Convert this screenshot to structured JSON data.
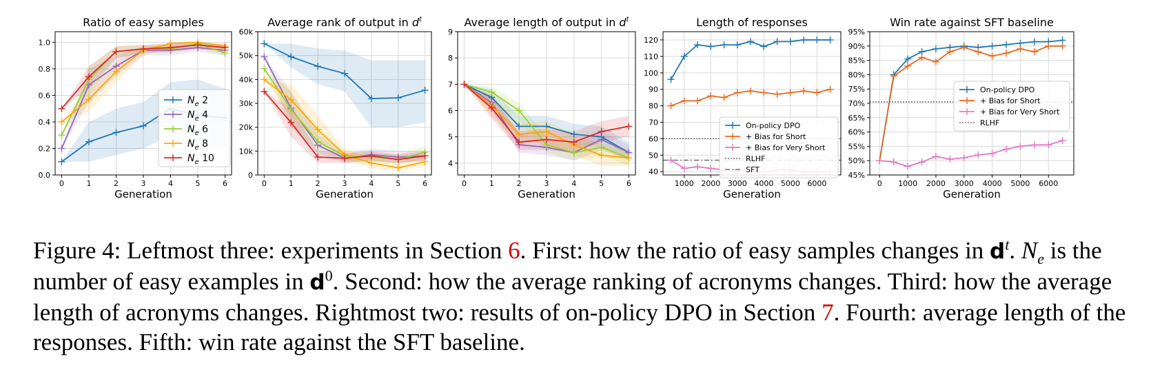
{
  "chart_data": [
    {
      "type": "line",
      "title": "Ratio of easy samples",
      "xlabel": "Generation",
      "ylabel": "",
      "x": [
        0,
        1,
        2,
        3,
        4,
        5,
        6
      ],
      "xticks": [
        "0",
        "1",
        "2",
        "3",
        "4",
        "5",
        "6"
      ],
      "yticks": [
        "0.0",
        "0.2",
        "0.4",
        "0.6",
        "0.8",
        "1.0"
      ],
      "ylim": [
        0,
        1.08
      ],
      "legend": "center-right",
      "series": [
        {
          "name": "N_e 2",
          "color": "#1f77b4",
          "values": [
            0.1,
            0.25,
            0.32,
            0.37,
            0.5,
            0.45,
            0.43
          ],
          "band": [
            0.1,
            0.4,
            0.5,
            0.55,
            0.7,
            0.72,
            0.65
          ],
          "band_low": [
            0.1,
            0.1,
            0.15,
            0.2,
            0.3,
            0.25,
            0.2
          ]
        },
        {
          "name": "N_e 4",
          "color": "#9467bd",
          "values": [
            0.2,
            0.68,
            0.82,
            0.94,
            0.94,
            0.96,
            0.94
          ],
          "band_low": [
            0.2,
            0.55,
            0.75,
            0.9,
            0.9,
            0.93,
            0.9
          ],
          "band": [
            0.2,
            0.8,
            0.9,
            0.97,
            0.98,
            0.99,
            0.98
          ]
        },
        {
          "name": "N_e 6",
          "color": "#9acd32",
          "values": [
            0.3,
            0.72,
            0.93,
            0.95,
            0.95,
            0.99,
            0.92
          ],
          "band_low": [
            0.3,
            0.6,
            0.88,
            0.92,
            0.92,
            0.95,
            0.9
          ],
          "band": [
            0.3,
            0.82,
            0.97,
            0.98,
            0.98,
            1.0,
            0.96
          ]
        },
        {
          "name": "N_e 8",
          "color": "#ffa500",
          "values": [
            0.4,
            0.57,
            0.78,
            0.94,
            0.99,
            1.0,
            0.97
          ],
          "band_low": [
            0.4,
            0.48,
            0.7,
            0.9,
            0.96,
            0.98,
            0.94
          ],
          "band": [
            0.4,
            0.66,
            0.85,
            0.97,
            1.0,
            1.0,
            0.99
          ]
        },
        {
          "name": "N_e 10",
          "color": "#d62728",
          "values": [
            0.5,
            0.74,
            0.93,
            0.95,
            0.96,
            0.98,
            0.96
          ],
          "band_low": [
            0.5,
            0.65,
            0.88,
            0.92,
            0.93,
            0.95,
            0.93
          ],
          "band": [
            0.5,
            0.82,
            0.97,
            0.98,
            0.99,
            1.0,
            0.99
          ]
        }
      ]
    },
    {
      "type": "line",
      "title": "Average rank of output in d^t",
      "xlabel": "Generation",
      "ylabel": "",
      "x": [
        0,
        1,
        2,
        3,
        4,
        5,
        6
      ],
      "xticks": [
        "0",
        "1",
        "2",
        "3",
        "4",
        "5",
        "6"
      ],
      "yticks": [
        "0",
        "10k",
        "20k",
        "30k",
        "40k",
        "50k",
        "60k"
      ],
      "ytick_values": [
        0,
        10000,
        20000,
        30000,
        40000,
        50000,
        60000
      ],
      "ylim": [
        0,
        60000
      ],
      "series": [
        {
          "name": "N_e 2",
          "color": "#1f77b4",
          "values": [
            55000,
            49500,
            45500,
            42500,
            32000,
            32300,
            35500
          ],
          "band_low": [
            55000,
            45000,
            38000,
            35000,
            20000,
            20000,
            22000
          ],
          "band": [
            55000,
            55000,
            53000,
            52000,
            48000,
            48000,
            48000
          ]
        },
        {
          "name": "N_e 4",
          "color": "#9467bd",
          "values": [
            49500,
            28000,
            12500,
            7000,
            8500,
            7500,
            8000
          ],
          "band_low": [
            49500,
            20000,
            9000,
            5000,
            6000,
            5000,
            6000
          ],
          "band": [
            49500,
            35000,
            17000,
            9000,
            11000,
            10000,
            10000
          ]
        },
        {
          "name": "N_e 6",
          "color": "#9acd32",
          "values": [
            44500,
            27500,
            14000,
            8000,
            7500,
            6500,
            9500
          ],
          "band_low": [
            44500,
            20000,
            10000,
            6000,
            5500,
            4500,
            7000
          ],
          "band": [
            44500,
            35000,
            18000,
            10000,
            9500,
            8500,
            12000
          ]
        },
        {
          "name": "N_e 8",
          "color": "#ffa500",
          "values": [
            40000,
            31500,
            19000,
            8500,
            5000,
            3000,
            5500
          ],
          "band_low": [
            40000,
            24000,
            14000,
            6000,
            3000,
            1500,
            3500
          ],
          "band": [
            40000,
            38000,
            25000,
            11000,
            7000,
            5000,
            8000
          ]
        },
        {
          "name": "N_e 10",
          "color": "#d62728",
          "values": [
            35000,
            22000,
            7500,
            7000,
            8000,
            6500,
            8000
          ],
          "band_low": [
            35000,
            16000,
            5000,
            5000,
            6000,
            5000,
            6000
          ],
          "band": [
            35000,
            28000,
            10000,
            9000,
            10000,
            8500,
            10000
          ]
        }
      ]
    },
    {
      "type": "line",
      "title": "Average length of output in d^t",
      "xlabel": "Generation",
      "ylabel": "",
      "x": [
        0,
        1,
        2,
        3,
        4,
        5,
        6
      ],
      "xticks": [
        "0",
        "1",
        "2",
        "3",
        "4",
        "5",
        "6"
      ],
      "yticks": [
        "4",
        "5",
        "6",
        "7",
        "8",
        "9"
      ],
      "ytick_values": [
        4,
        5,
        6,
        7,
        8,
        9
      ],
      "ylim": [
        3.55,
        9
      ],
      "series": [
        {
          "name": "N_e 2",
          "color": "#1f77b4",
          "values": [
            7.0,
            6.5,
            5.4,
            5.4,
            5.1,
            5.0,
            4.4
          ],
          "band_low": [
            7.0,
            6.2,
            5.0,
            5.0,
            4.7,
            4.6,
            4.1
          ],
          "band": [
            7.0,
            6.8,
            5.8,
            5.8,
            5.5,
            5.4,
            4.8
          ]
        },
        {
          "name": "N_e 4",
          "color": "#9467bd",
          "values": [
            7.0,
            6.3,
            4.7,
            4.6,
            4.4,
            4.9,
            4.4
          ],
          "band_low": [
            7.0,
            6.0,
            4.4,
            4.3,
            4.1,
            4.5,
            4.1
          ],
          "band": [
            7.0,
            6.6,
            5.1,
            4.9,
            4.7,
            5.2,
            4.7
          ]
        },
        {
          "name": "N_e 6",
          "color": "#9acd32",
          "values": [
            7.0,
            6.7,
            6.0,
            4.7,
            4.4,
            4.6,
            4.2
          ],
          "band_low": [
            7.0,
            6.4,
            5.6,
            4.4,
            4.1,
            4.3,
            3.9
          ],
          "band": [
            7.0,
            6.9,
            6.3,
            5.0,
            4.7,
            4.9,
            4.5
          ]
        },
        {
          "name": "N_e 8",
          "color": "#ffa500",
          "values": [
            7.0,
            6.2,
            5.1,
            5.2,
            4.7,
            4.3,
            4.2
          ],
          "band_low": [
            7.0,
            5.8,
            4.7,
            4.8,
            4.3,
            3.9,
            3.9
          ],
          "band": [
            7.0,
            6.6,
            5.5,
            5.6,
            5.1,
            4.7,
            4.5
          ]
        },
        {
          "name": "N_e 10",
          "color": "#d62728",
          "values": [
            7.0,
            6.1,
            4.8,
            4.9,
            4.8,
            5.2,
            5.4
          ],
          "band_low": [
            7.0,
            5.7,
            4.5,
            4.5,
            4.4,
            4.8,
            5.0
          ],
          "band": [
            7.0,
            6.5,
            5.2,
            5.3,
            5.2,
            5.6,
            5.8
          ]
        }
      ]
    },
    {
      "type": "line",
      "title": "Length of responses",
      "xlabel": "Generation",
      "ylabel": "",
      "x": [
        500,
        1000,
        1500,
        2000,
        2500,
        3000,
        3500,
        4000,
        4500,
        5000,
        5500,
        6000,
        6500
      ],
      "xticks": [
        "1000",
        "2000",
        "3000",
        "4000",
        "5000",
        "6000"
      ],
      "xtick_values": [
        1000,
        2000,
        3000,
        4000,
        5000,
        6000
      ],
      "yticks": [
        "40",
        "50",
        "60",
        "70",
        "80",
        "90",
        "100",
        "110",
        "120"
      ],
      "ytick_values": [
        40,
        50,
        60,
        70,
        80,
        90,
        100,
        110,
        120
      ],
      "xlim": [
        200,
        6900
      ],
      "ylim": [
        38,
        125
      ],
      "legend": "lower-right",
      "series": [
        {
          "name": "On-policy DPO",
          "color": "#1f77b4",
          "values": [
            96,
            110,
            117,
            116,
            117,
            117,
            119,
            116,
            119,
            119,
            120,
            120,
            120
          ]
        },
        {
          "name": "+ Bias for Short",
          "color": "#e8681c",
          "values": [
            80,
            83,
            83,
            86,
            85,
            88,
            89,
            88,
            87,
            88,
            89,
            88,
            90
          ]
        },
        {
          "name": "+ Bias for Very Short",
          "color": "#e377c2",
          "values": [
            47,
            42,
            43,
            42,
            41,
            41,
            40,
            40,
            41,
            41,
            40,
            40,
            40
          ]
        }
      ],
      "reference_lines": [
        {
          "name": "RLHF",
          "value": 60,
          "style": "dotted",
          "color": "#555555"
        },
        {
          "name": "SFT",
          "value": 47,
          "style": "dashdot",
          "color": "#555555"
        }
      ]
    },
    {
      "type": "line",
      "title": "Win rate against SFT baseline",
      "xlabel": "Generation",
      "ylabel": "",
      "x": [
        0,
        500,
        1000,
        1500,
        2000,
        2500,
        3000,
        3500,
        4000,
        4500,
        5000,
        5500,
        6000,
        6500
      ],
      "xticks": [
        "0",
        "1000",
        "2000",
        "3000",
        "4000",
        "5000",
        "6000"
      ],
      "xtick_values": [
        0,
        1000,
        2000,
        3000,
        4000,
        5000,
        6000
      ],
      "yticks": [
        "45%",
        "50%",
        "55%",
        "60%",
        "65%",
        "70%",
        "75%",
        "80%",
        "85%",
        "90%",
        "95%"
      ],
      "ytick_values": [
        45,
        50,
        55,
        60,
        65,
        70,
        75,
        80,
        85,
        90,
        95
      ],
      "xlim": [
        -350,
        6900
      ],
      "ylim": [
        45,
        95
      ],
      "legend": "center-right",
      "series": [
        {
          "name": "On-policy DPO",
          "color": "#1f77b4",
          "values": [
            50,
            80,
            85.5,
            88,
            89,
            89.5,
            90,
            89.5,
            90,
            90.5,
            91,
            91.5,
            91.5,
            92
          ]
        },
        {
          "name": "+ Bias for Short",
          "color": "#e8681c",
          "values": [
            50,
            79.5,
            83,
            86,
            84.5,
            88,
            89.5,
            88,
            86.5,
            87.5,
            89,
            88,
            90,
            90
          ]
        },
        {
          "name": "+ Bias for Very Short",
          "color": "#e377c2",
          "values": [
            50,
            49.5,
            48,
            49.5,
            51.5,
            50.5,
            51,
            52,
            52.5,
            54,
            55,
            55.5,
            55.5,
            57
          ]
        }
      ],
      "reference_lines": [
        {
          "name": "RLHF",
          "value": 70.5,
          "style": "dotted",
          "color": "#555555"
        }
      ]
    }
  ],
  "caption": {
    "p1": "Figure 4: Leftmost three: experiments in Section ",
    "ref1": "6",
    "p2": ". First: how the ratio of easy samples changes in ",
    "d": "d",
    "sup_t": "t",
    "p3": ". ",
    "Ne_N": "N",
    "Ne_e": "e",
    "p4": " is the number of easy examples in ",
    "sup_0": "0",
    "p5": ". Second: how the average ranking of acronyms changes. Third: how the average length of acronyms changes. Rightmost two: results of on-policy DPO in Section ",
    "ref2": "7",
    "p6": ". Fourth: average length of the responses. Fifth: win rate against the SFT baseline."
  }
}
